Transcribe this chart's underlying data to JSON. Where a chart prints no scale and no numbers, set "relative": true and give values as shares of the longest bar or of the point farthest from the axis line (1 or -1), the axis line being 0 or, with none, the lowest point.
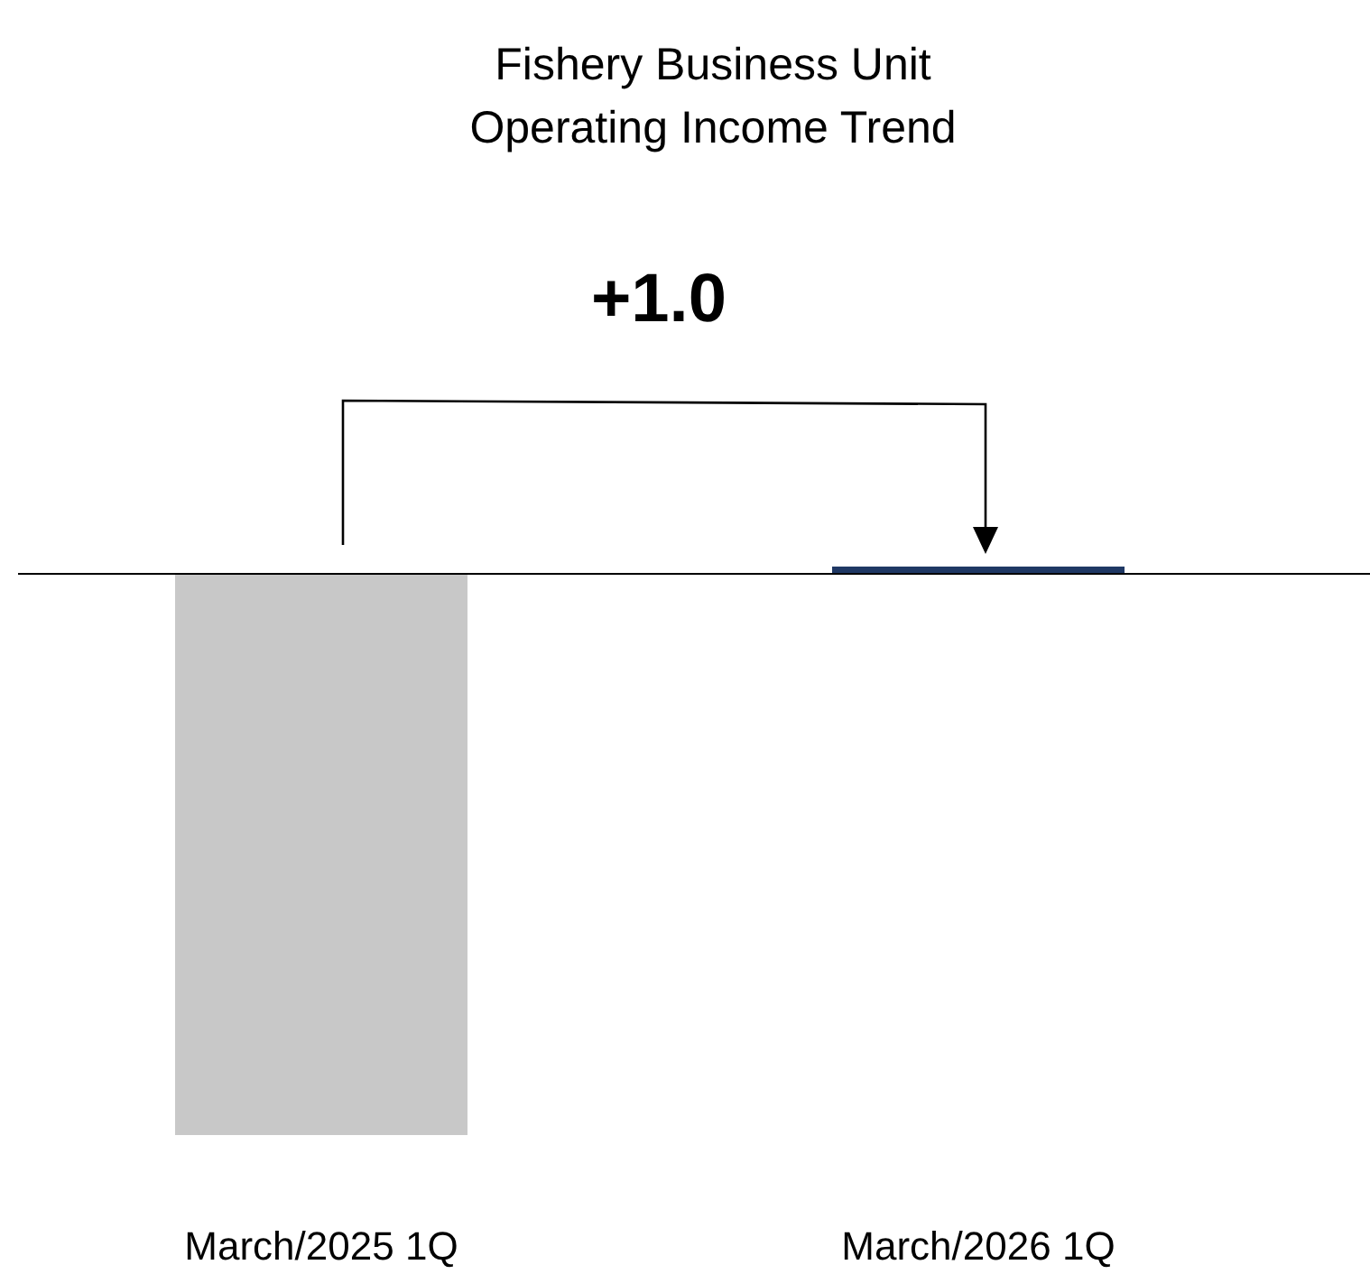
{
  "chart_data": {
    "type": "bar",
    "title": "Fishery Business Unit\nOperating Income Trend",
    "relative": true,
    "categories": [
      "March/2025 1Q",
      "March/2026 1Q"
    ],
    "values": [
      -1,
      0.013
    ],
    "colors": [
      "#c8c8c8",
      "#1f3864"
    ],
    "annotations": [
      "+1.0"
    ]
  }
}
